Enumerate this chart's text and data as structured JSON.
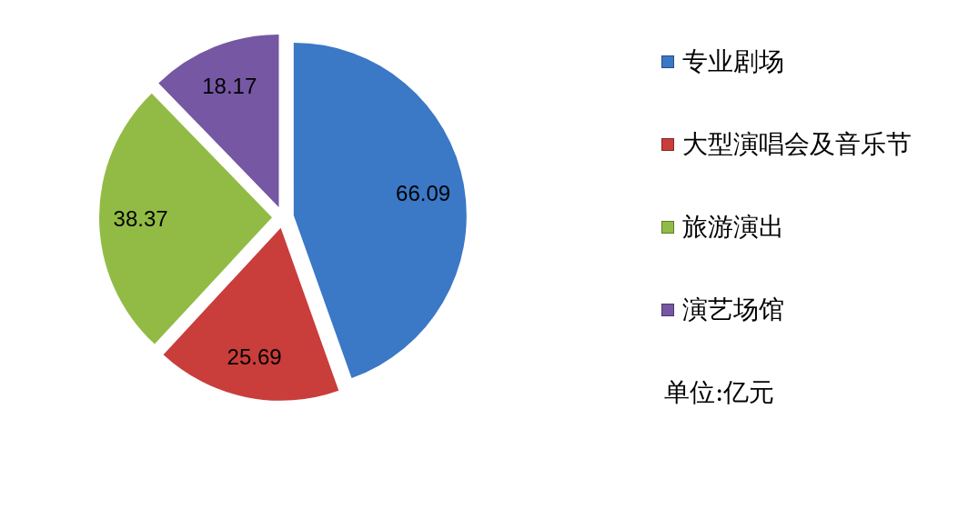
{
  "chart_data": {
    "type": "pie",
    "categories": [
      "专业剧场",
      "大型演唱会及音乐节",
      "旅游演出",
      "演艺场馆"
    ],
    "values": [
      66.09,
      25.69,
      38.37,
      18.17
    ],
    "colors": [
      "#3b78c6",
      "#c93d3b",
      "#92bb45",
      "#7657a3"
    ],
    "data_labels": true,
    "legend": "right",
    "annotations": [
      "单位:亿元"
    ]
  }
}
